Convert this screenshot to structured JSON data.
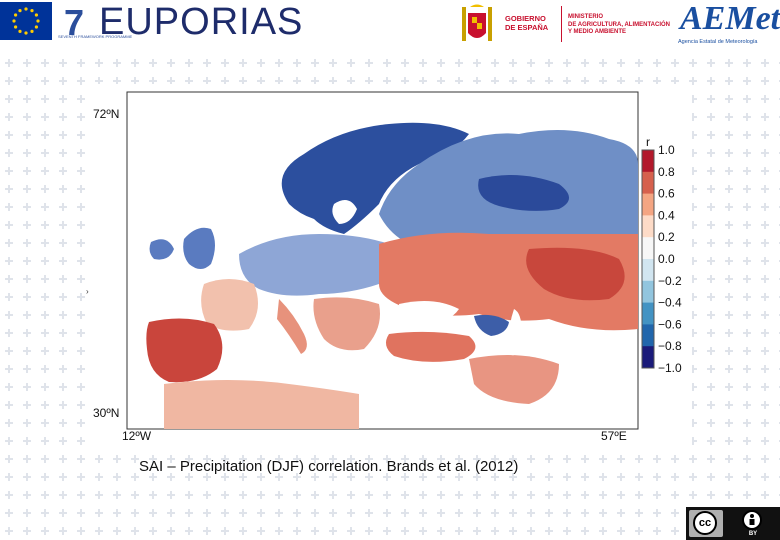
{
  "header": {
    "fp7_number": "7",
    "fp7_small": "SEVENTH FRAMEWORK PROGRAMME",
    "project": "EUPORIAS",
    "gov_text": "GOBIERNO\nDE ESPAÑA",
    "ministry_text": "MINISTERIO\nDE AGRICULTURA, ALIMENTACIÓN\nY MEDIO AMBIENTE",
    "aemet_word": "AEMet",
    "aemet_sub": "Agencia Estatal de Meteorología"
  },
  "figure": {
    "lat_top": "72ºN",
    "lat_bottom": "30ºN",
    "lon_left": "12ºW",
    "lon_right": "57ºE",
    "colorbar_title": "r",
    "colorbar_ticks": [
      "1.0",
      "0.8",
      "0.6",
      "0.4",
      "0.2",
      "0.0",
      "−0.2",
      "−0.4",
      "−0.6",
      "−0.8",
      "−1.0"
    ],
    "colorbar_colors": [
      "#b2182b",
      "#d6604d",
      "#f4a582",
      "#fddbc7",
      "#f7f7f7",
      "#d1e5f0",
      "#92c5de",
      "#4393c3",
      "#2166ac",
      "#1b1b7a"
    ]
  },
  "caption": "SAI – Precipitation (DJF) correlation. Brands et al. (2012)",
  "license": {
    "cc": "cc",
    "by": "BY"
  }
}
